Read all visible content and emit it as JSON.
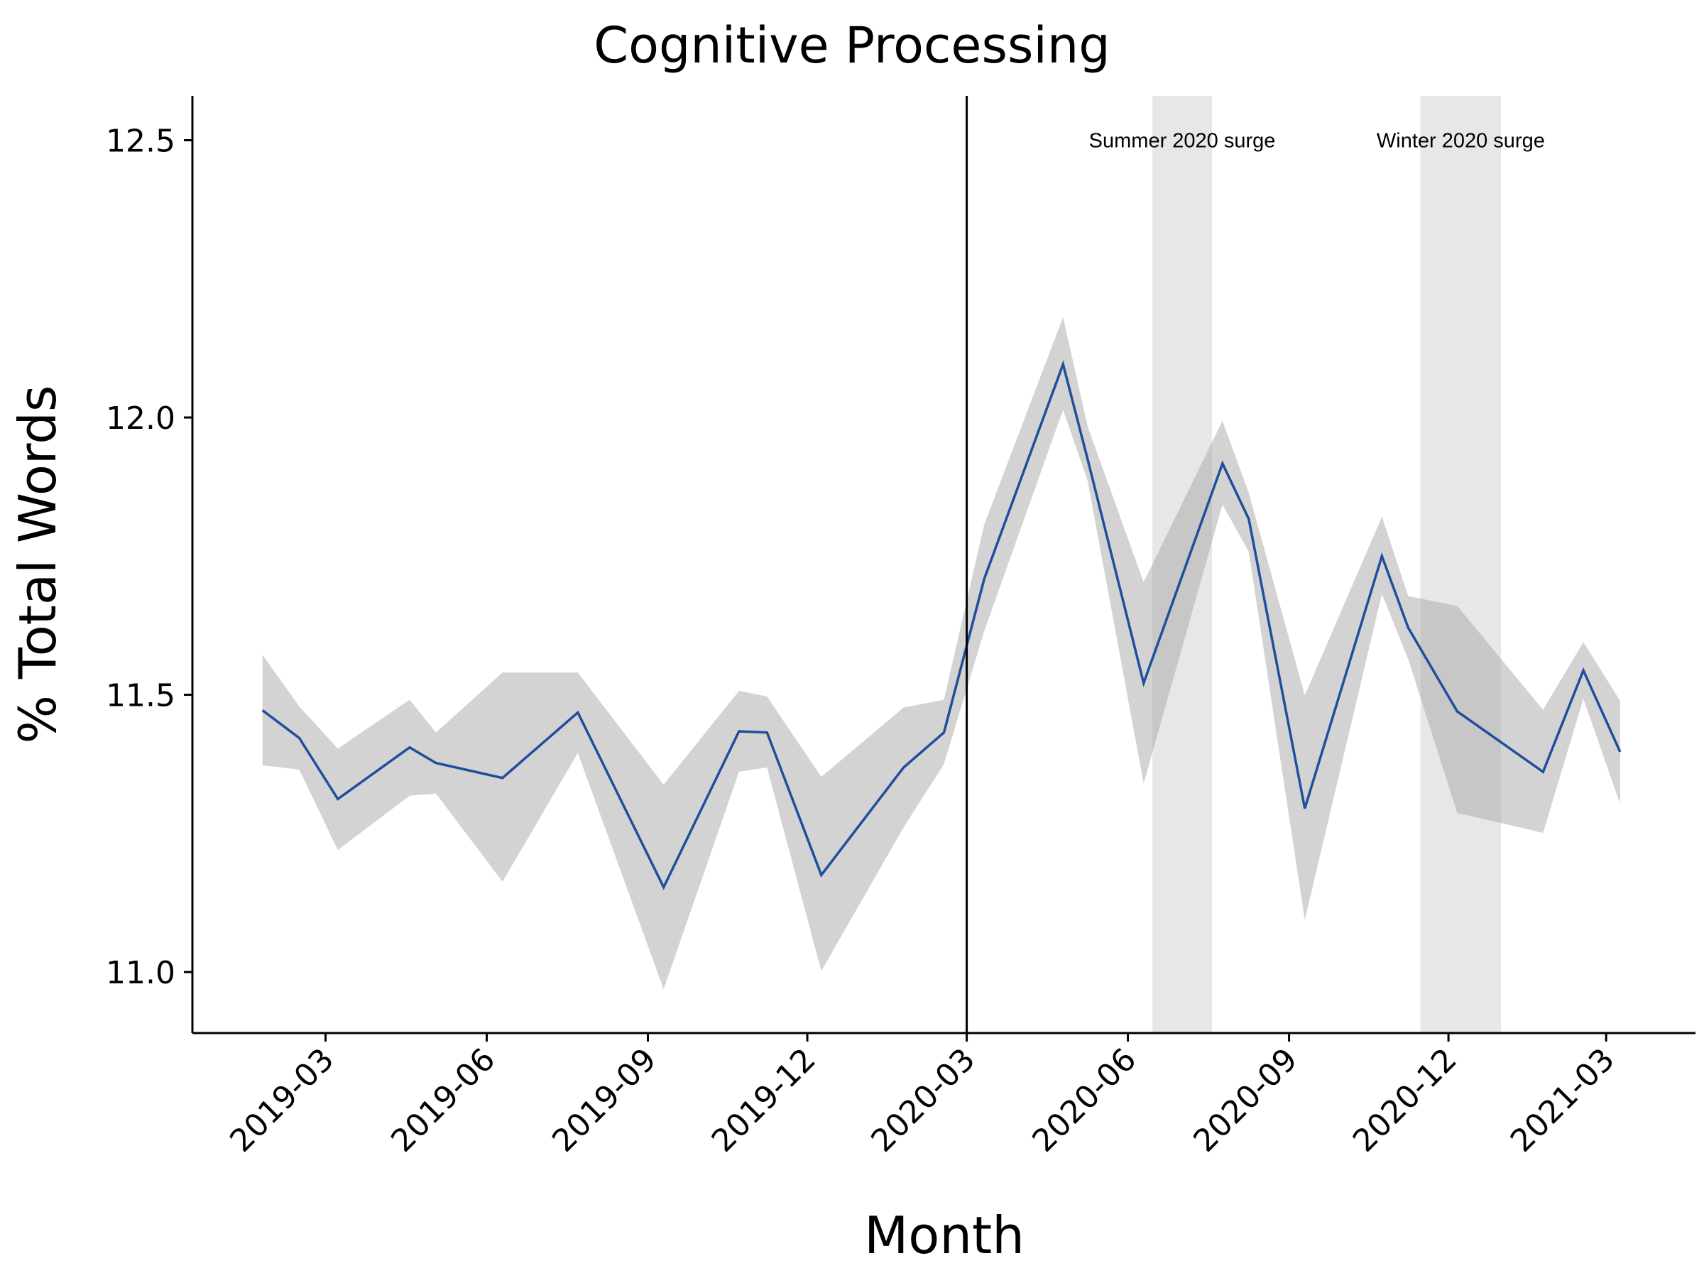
{
  "chart_data": {
    "type": "line",
    "title": "Cognitive Processing",
    "xlabel": "Month",
    "ylabel": "% Total Words",
    "xlim": [
      "2018-12-15",
      "2021-04-21"
    ],
    "ylim": [
      10.89,
      12.58
    ],
    "grid": false,
    "line_color": "#1f4e9c",
    "band_color": "#d3d3d3",
    "x_ticks": [
      "2019-03",
      "2019-06",
      "2019-09",
      "2019-12",
      "2020-03",
      "2020-06",
      "2020-09",
      "2020-12",
      "2021-03"
    ],
    "y_ticks": [
      11.0,
      11.5,
      12.0,
      12.5
    ],
    "y_tick_labels": [
      "11.0",
      "11.5",
      "12.0",
      "12.5"
    ],
    "series": [
      {
        "x": [
          "2019-01-24",
          "2019-02-14",
          "2019-03-08",
          "2019-04-18",
          "2019-05-03",
          "2019-06-10",
          "2019-07-23",
          "2019-09-10",
          "2019-10-23",
          "2019-11-08",
          "2019-12-09",
          "2020-01-25",
          "2020-02-17",
          "2020-03-11",
          "2020-04-25",
          "2020-05-09",
          "2020-06-10",
          "2020-07-25",
          "2020-08-09",
          "2020-09-10",
          "2020-10-24",
          "2020-11-08",
          "2020-12-06",
          "2021-01-24",
          "2021-02-16",
          "2021-03-09"
        ],
        "y": [
          11.472,
          11.422,
          11.312,
          11.405,
          11.377,
          11.35,
          11.468,
          11.153,
          11.434,
          11.432,
          11.175,
          11.369,
          11.432,
          11.709,
          12.096,
          11.925,
          11.521,
          11.917,
          11.817,
          11.295,
          11.75,
          11.621,
          11.47,
          11.361,
          11.544,
          11.397
        ],
        "upper": [
          11.572,
          11.479,
          11.403,
          11.491,
          11.432,
          11.54,
          11.54,
          11.338,
          11.507,
          11.497,
          11.352,
          11.477,
          11.491,
          11.807,
          12.181,
          11.984,
          11.703,
          11.994,
          11.864,
          11.499,
          11.821,
          11.678,
          11.66,
          11.473,
          11.595,
          11.489
        ],
        "lower": [
          11.373,
          11.365,
          11.22,
          11.318,
          11.322,
          11.163,
          11.395,
          10.969,
          11.361,
          11.369,
          11.002,
          11.261,
          11.375,
          11.615,
          12.014,
          11.886,
          11.34,
          11.843,
          11.758,
          11.094,
          11.682,
          11.564,
          11.287,
          11.251,
          11.493,
          11.303
        ]
      }
    ],
    "vertical_line": "2020-03-01",
    "shaded_spans": [
      {
        "label": "Summer 2020 surge",
        "start": "2020-06-15",
        "end": "2020-07-19",
        "label_y": 12.5
      },
      {
        "label": "Winter 2020 surge",
        "start": "2020-11-15",
        "end": "2020-12-31",
        "label_y": 12.5
      }
    ],
    "span_color": "#e4e4e4"
  }
}
